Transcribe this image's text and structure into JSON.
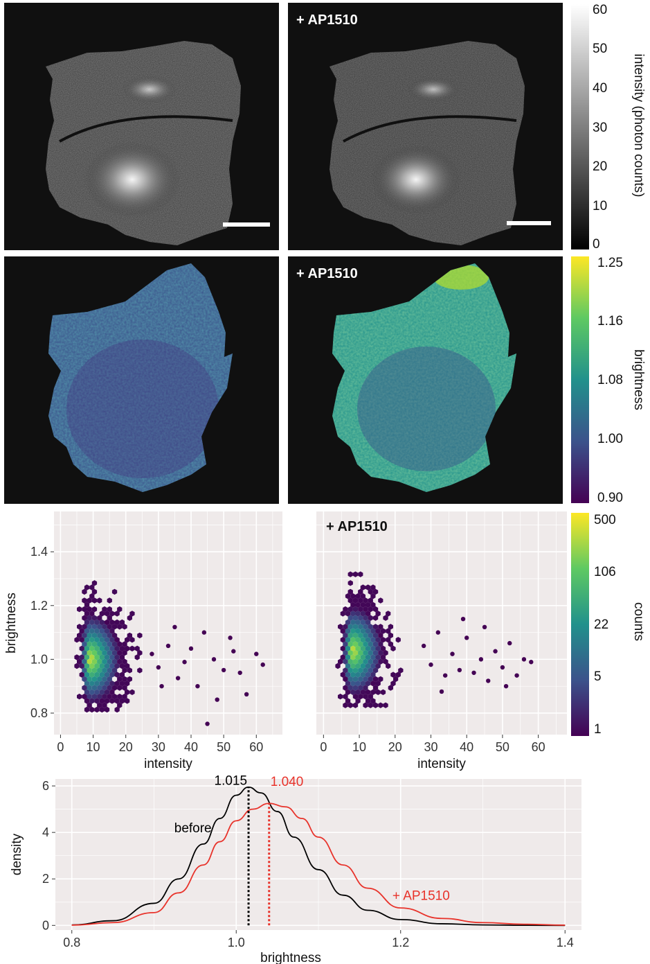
{
  "rows": {
    "intensity": {
      "panel_right_label": "+ AP1510",
      "colorbar": {
        "title": "intensity (photon counts)",
        "ticks": [
          "60",
          "50",
          "40",
          "30",
          "20",
          "10",
          "0"
        ],
        "range": [
          0,
          60
        ],
        "colors": [
          "#000000",
          "#ffffff"
        ]
      }
    },
    "brightness": {
      "panel_right_label": "+ AP1510",
      "colorbar": {
        "title": "brightness",
        "ticks": [
          "1.25",
          "1.16",
          "1.08",
          "1.00",
          "0.90"
        ],
        "range": [
          0.9,
          1.25
        ],
        "colors": [
          "#440154",
          "#3b528b",
          "#21918c",
          "#5ec962",
          "#fde725"
        ]
      }
    },
    "hexbin": {
      "colorbar": {
        "title": "counts",
        "ticks": [
          "500",
          "106",
          "22",
          "5",
          "1"
        ],
        "scale": "log",
        "range": [
          1,
          500
        ]
      }
    }
  },
  "chart_data": [
    {
      "type": "scatter",
      "subtype": "hexbin",
      "title": "",
      "xlabel": "intensity",
      "ylabel": "brightness",
      "xlim": [
        -2,
        68
      ],
      "ylim": [
        0.72,
        1.55
      ],
      "xticks": [
        "0",
        "10",
        "20",
        "30",
        "40",
        "50",
        "60"
      ],
      "yticks": [
        "0.8",
        "1.0",
        "1.2",
        "1.4"
      ],
      "grid": true,
      "background": "#efeaea",
      "core": {
        "x_center": 9,
        "y_center": 1.0,
        "x_range": [
          5,
          27
        ],
        "y_range": [
          0.8,
          1.3
        ]
      },
      "outlier_points": [
        [
          28,
          1.02
        ],
        [
          30,
          0.97
        ],
        [
          33,
          1.05
        ],
        [
          36,
          0.93
        ],
        [
          38,
          0.99
        ],
        [
          40,
          1.04
        ],
        [
          42,
          0.9
        ],
        [
          45,
          0.76
        ],
        [
          47,
          1.0
        ],
        [
          50,
          0.96
        ],
        [
          52,
          1.08
        ],
        [
          55,
          0.95
        ],
        [
          57,
          0.87
        ],
        [
          60,
          1.02
        ],
        [
          62,
          0.98
        ],
        [
          44,
          1.1
        ],
        [
          35,
          1.12
        ],
        [
          31,
          0.9
        ],
        [
          48,
          0.85
        ],
        [
          53,
          1.03
        ]
      ]
    },
    {
      "type": "scatter",
      "subtype": "hexbin",
      "title": "+ AP1510",
      "xlabel": "intensity",
      "ylabel": "",
      "xlim": [
        -2,
        68
      ],
      "ylim": [
        0.72,
        1.55
      ],
      "xticks": [
        "0",
        "10",
        "20",
        "30",
        "40",
        "50",
        "60"
      ],
      "grid": true,
      "background": "#efeaea",
      "core": {
        "x_center": 8,
        "y_center": 1.03,
        "x_range": [
          4,
          27
        ],
        "y_range": [
          0.82,
          1.43
        ]
      },
      "outlier_points": [
        [
          28,
          1.05
        ],
        [
          30,
          0.98
        ],
        [
          32,
          1.1
        ],
        [
          34,
          0.94
        ],
        [
          36,
          1.02
        ],
        [
          38,
          0.96
        ],
        [
          40,
          1.08
        ],
        [
          42,
          0.95
        ],
        [
          44,
          1.0
        ],
        [
          46,
          0.92
        ],
        [
          48,
          1.03
        ],
        [
          50,
          0.97
        ],
        [
          52,
          1.06
        ],
        [
          54,
          0.94
        ],
        [
          56,
          1.0
        ],
        [
          58,
          0.99
        ],
        [
          45,
          1.12
        ],
        [
          39,
          1.15
        ],
        [
          33,
          0.88
        ],
        [
          51,
          0.9
        ]
      ]
    },
    {
      "type": "line",
      "title": "",
      "xlabel": "brightness",
      "ylabel": "density",
      "xlim": [
        0.78,
        1.42
      ],
      "ylim": [
        -0.2,
        6.3
      ],
      "xticks": [
        "0.8",
        "1.0",
        "1.2",
        "1.4"
      ],
      "yticks": [
        "0",
        "2",
        "4",
        "6"
      ],
      "grid": true,
      "background": "#efeaea",
      "series": [
        {
          "name": "before",
          "color": "#000000",
          "x": [
            0.8,
            0.85,
            0.9,
            0.93,
            0.96,
            0.98,
            1.0,
            1.015,
            1.03,
            1.05,
            1.07,
            1.1,
            1.13,
            1.16,
            1.2,
            1.25,
            1.3,
            1.35,
            1.4
          ],
          "y": [
            0.02,
            0.2,
            0.95,
            2.0,
            3.5,
            4.6,
            5.6,
            5.95,
            5.7,
            4.9,
            3.8,
            2.4,
            1.3,
            0.65,
            0.25,
            0.07,
            0.02,
            0.005,
            0.0
          ]
        },
        {
          "name": "+ AP1510",
          "color": "#e8322a",
          "x": [
            0.8,
            0.85,
            0.9,
            0.93,
            0.96,
            0.98,
            1.0,
            1.02,
            1.04,
            1.06,
            1.08,
            1.1,
            1.13,
            1.16,
            1.2,
            1.25,
            1.3,
            1.35,
            1.4
          ],
          "y": [
            0.01,
            0.12,
            0.55,
            1.4,
            2.6,
            3.6,
            4.5,
            5.0,
            5.25,
            5.1,
            4.6,
            3.8,
            2.6,
            1.6,
            0.75,
            0.3,
            0.12,
            0.05,
            0.01
          ]
        }
      ],
      "annotations": [
        {
          "label": "1.015",
          "x": 1.015,
          "color": "#000000"
        },
        {
          "label": "1.040",
          "x": 1.04,
          "color": "#e8322a"
        }
      ]
    }
  ]
}
